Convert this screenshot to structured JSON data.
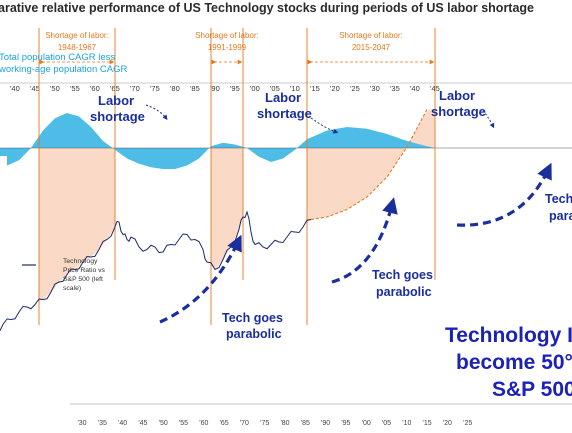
{
  "title": "arative relative performance of US Technology stocks during periods of US labor shortage",
  "chart_data": {
    "type": "line",
    "x_range": [
      1930,
      2050
    ],
    "top_axis": {
      "ticks": [
        1940,
        1945,
        1950,
        1955,
        1960,
        1965,
        1970,
        1975,
        1980,
        1985,
        1990,
        1995,
        2000,
        2005,
        2010,
        2015,
        2020,
        2025,
        2030,
        2035,
        2040,
        2045
      ],
      "labels": [
        "'40",
        "'45",
        "'50",
        "'55",
        "'60",
        "'65",
        "'70",
        "'75",
        "'80",
        "'85",
        "'90",
        "'95",
        "'00",
        "'05",
        "'10",
        "'15",
        "'20",
        "'25",
        "'30",
        "'35",
        "'40",
        "'45"
      ]
    },
    "bottom_axis": {
      "ticks": [
        1930,
        1935,
        1940,
        1945,
        1950,
        1955,
        1960,
        1965,
        1970,
        1975,
        1980,
        1985,
        1990,
        1995,
        2000,
        2005,
        2010,
        2015,
        2020,
        2025
      ],
      "labels": [
        "'30",
        "'35",
        "'40",
        "'45",
        "'50",
        "'55",
        "'60",
        "'65",
        "'70",
        "'75",
        "'80",
        "'85",
        "'90",
        "'95",
        "'00",
        "'05",
        "'10",
        "'15",
        "'20",
        "'25"
      ]
    },
    "cagr_series": {
      "name": "Total population CAGR less working-age population CAGR",
      "x": [
        1940,
        1943,
        1946,
        1949,
        1952,
        1955,
        1958,
        1961,
        1964,
        1967,
        1970,
        1973,
        1976,
        1979,
        1982,
        1985,
        1988,
        1991,
        1994,
        1997,
        2000,
        2003,
        2006,
        2009,
        2012,
        2015,
        2020,
        2025,
        2030,
        2035,
        2040,
        2045,
        2047
      ],
      "y": [
        -0.5,
        -0.35,
        0.0,
        0.5,
        0.85,
        1.0,
        0.9,
        0.6,
        0.2,
        -0.05,
        -0.3,
        -0.45,
        -0.55,
        -0.6,
        -0.6,
        -0.5,
        -0.3,
        0.05,
        0.15,
        0.1,
        0.0,
        -0.25,
        -0.4,
        -0.3,
        -0.05,
        0.25,
        0.5,
        0.6,
        0.55,
        0.4,
        0.2,
        0.05,
        0.0
      ],
      "color": "#4dbde8"
    },
    "tech_series": {
      "name": "Technology Price Ratio vs S&P 500 (left scale)",
      "x": [
        1933,
        1934,
        1935,
        1937,
        1939,
        1941,
        1943,
        1945,
        1947,
        1949,
        1951,
        1953,
        1955,
        1957,
        1959,
        1961,
        1963,
        1965,
        1967,
        1968,
        1969,
        1970,
        1971,
        1973,
        1975,
        1977,
        1979,
        1981,
        1983,
        1985,
        1987,
        1989,
        1990,
        1992,
        1994,
        1996,
        1998,
        1999,
        2000,
        2001,
        2002,
        2004,
        2006,
        2008,
        2010,
        2012,
        2014,
        2016
      ],
      "y": [
        0.3,
        0.6,
        1.2,
        1.5,
        1.9,
        2.1,
        2.4,
        2.6,
        2.7,
        2.9,
        3.2,
        3.6,
        3.9,
        4.1,
        4.4,
        4.6,
        4.9,
        5.3,
        5.8,
        6.0,
        5.5,
        5.3,
        5.4,
        5.0,
        4.9,
        5.0,
        4.8,
        5.1,
        5.3,
        5.5,
        5.3,
        4.9,
        4.4,
        4.1,
        4.5,
        5.0,
        5.7,
        6.2,
        6.4,
        5.6,
        5.1,
        5.0,
        5.1,
        5.2,
        5.4,
        5.6,
        5.8,
        6.1
      ],
      "color": "#1c2a6b"
    },
    "projection": {
      "x": [
        2016,
        2020,
        2025,
        2030,
        2035,
        2040,
        2045
      ],
      "y": [
        6.1,
        6.2,
        6.5,
        7.0,
        7.8,
        9.0,
        10.5
      ],
      "color": "#e8791d"
    },
    "shortage_periods": [
      {
        "label": "Shortage of labor:",
        "range": "1948-1967",
        "start": 1948,
        "end": 1967
      },
      {
        "label": "Shortage of labor:",
        "range": "1991-1999",
        "start": 1991,
        "end": 1999
      },
      {
        "label": "Shortage of labor:",
        "range": "2015-2047",
        "start": 2015,
        "end": 2047
      }
    ],
    "colors": {
      "shade": "#f9d3bd",
      "period_line": "#e8791d",
      "callout": "#e8791d",
      "annot": "#1a2e9c",
      "big_text": "#1b22b5",
      "cagr_text": "#1aa3dd"
    }
  },
  "annotations": {
    "cagr_label_1": "Total population CAGR less",
    "cagr_label_2": "working-age population CAGR",
    "labor_1": [
      "Labor",
      "shortage"
    ],
    "labor_2": [
      "Labor",
      "shortage"
    ],
    "labor_3": [
      "Labor",
      "shortage"
    ],
    "tech_1": [
      "Tech goes",
      "parabolic"
    ],
    "tech_2": [
      "Tech goes",
      "parabolic"
    ],
    "tech_3": [
      "Tech",
      "para"
    ],
    "legend": [
      "Technology",
      "Price Ratio vs",
      "S&P 500 (left",
      "scale)"
    ],
    "big_1": "Technology I",
    "big_2": "become 50°",
    "big_3": "S&P 500"
  }
}
